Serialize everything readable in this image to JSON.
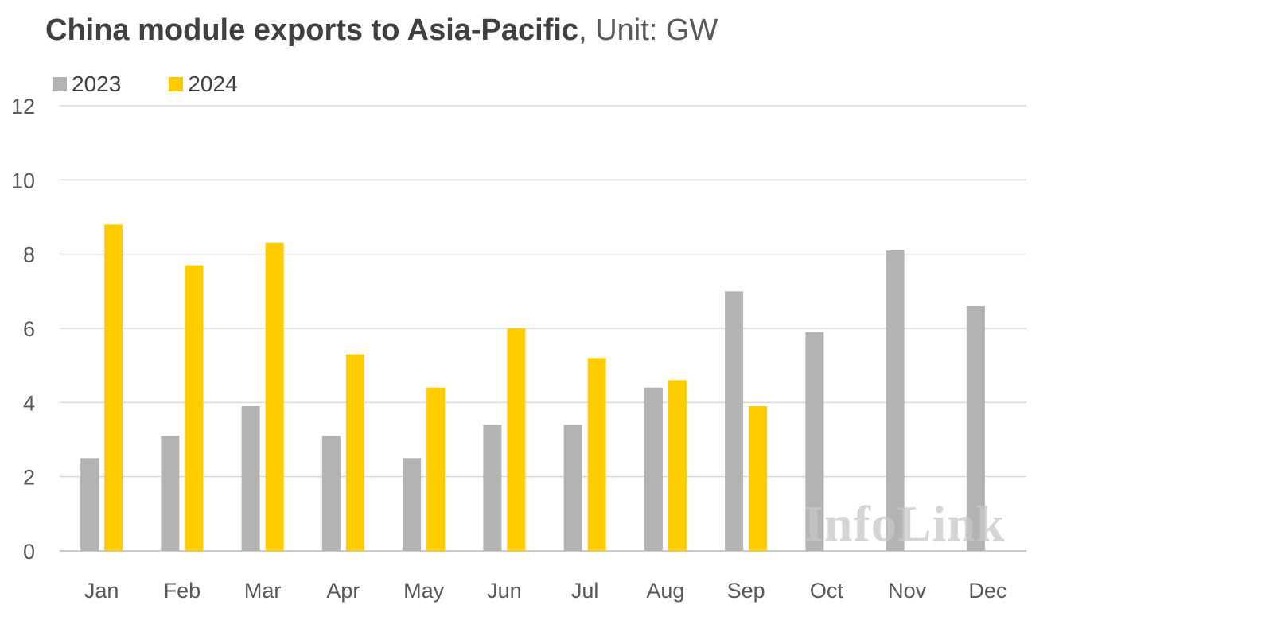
{
  "header": {
    "title_main": "China module exports to Asia-Pacific",
    "title_unit": ", Unit: GW"
  },
  "legend": {
    "items": [
      {
        "label": "2023",
        "color": "#b3b3b3"
      },
      {
        "label": "2024",
        "color": "#ffcc00"
      }
    ]
  },
  "watermark": "InfoLink",
  "chart_data": {
    "type": "bar",
    "title": "China module exports to Asia-Pacific, Unit: GW",
    "xlabel": "",
    "ylabel": "",
    "ylim": [
      0,
      12
    ],
    "yticks": [
      0,
      2,
      4,
      6,
      8,
      10,
      12
    ],
    "grid": true,
    "legend_position": "top-left",
    "categories": [
      "Jan",
      "Feb",
      "Mar",
      "Apr",
      "May",
      "Jun",
      "Jul",
      "Aug",
      "Sep",
      "Oct",
      "Nov",
      "Dec"
    ],
    "series": [
      {
        "name": "2023",
        "color": "#b3b3b3",
        "values": [
          2.5,
          3.1,
          3.9,
          3.1,
          2.5,
          3.4,
          3.4,
          4.4,
          7.0,
          5.9,
          8.1,
          6.6
        ]
      },
      {
        "name": "2024",
        "color": "#ffcc00",
        "values": [
          8.8,
          7.7,
          8.3,
          5.3,
          4.4,
          6.0,
          5.2,
          4.6,
          3.9,
          null,
          null,
          null
        ]
      }
    ]
  }
}
